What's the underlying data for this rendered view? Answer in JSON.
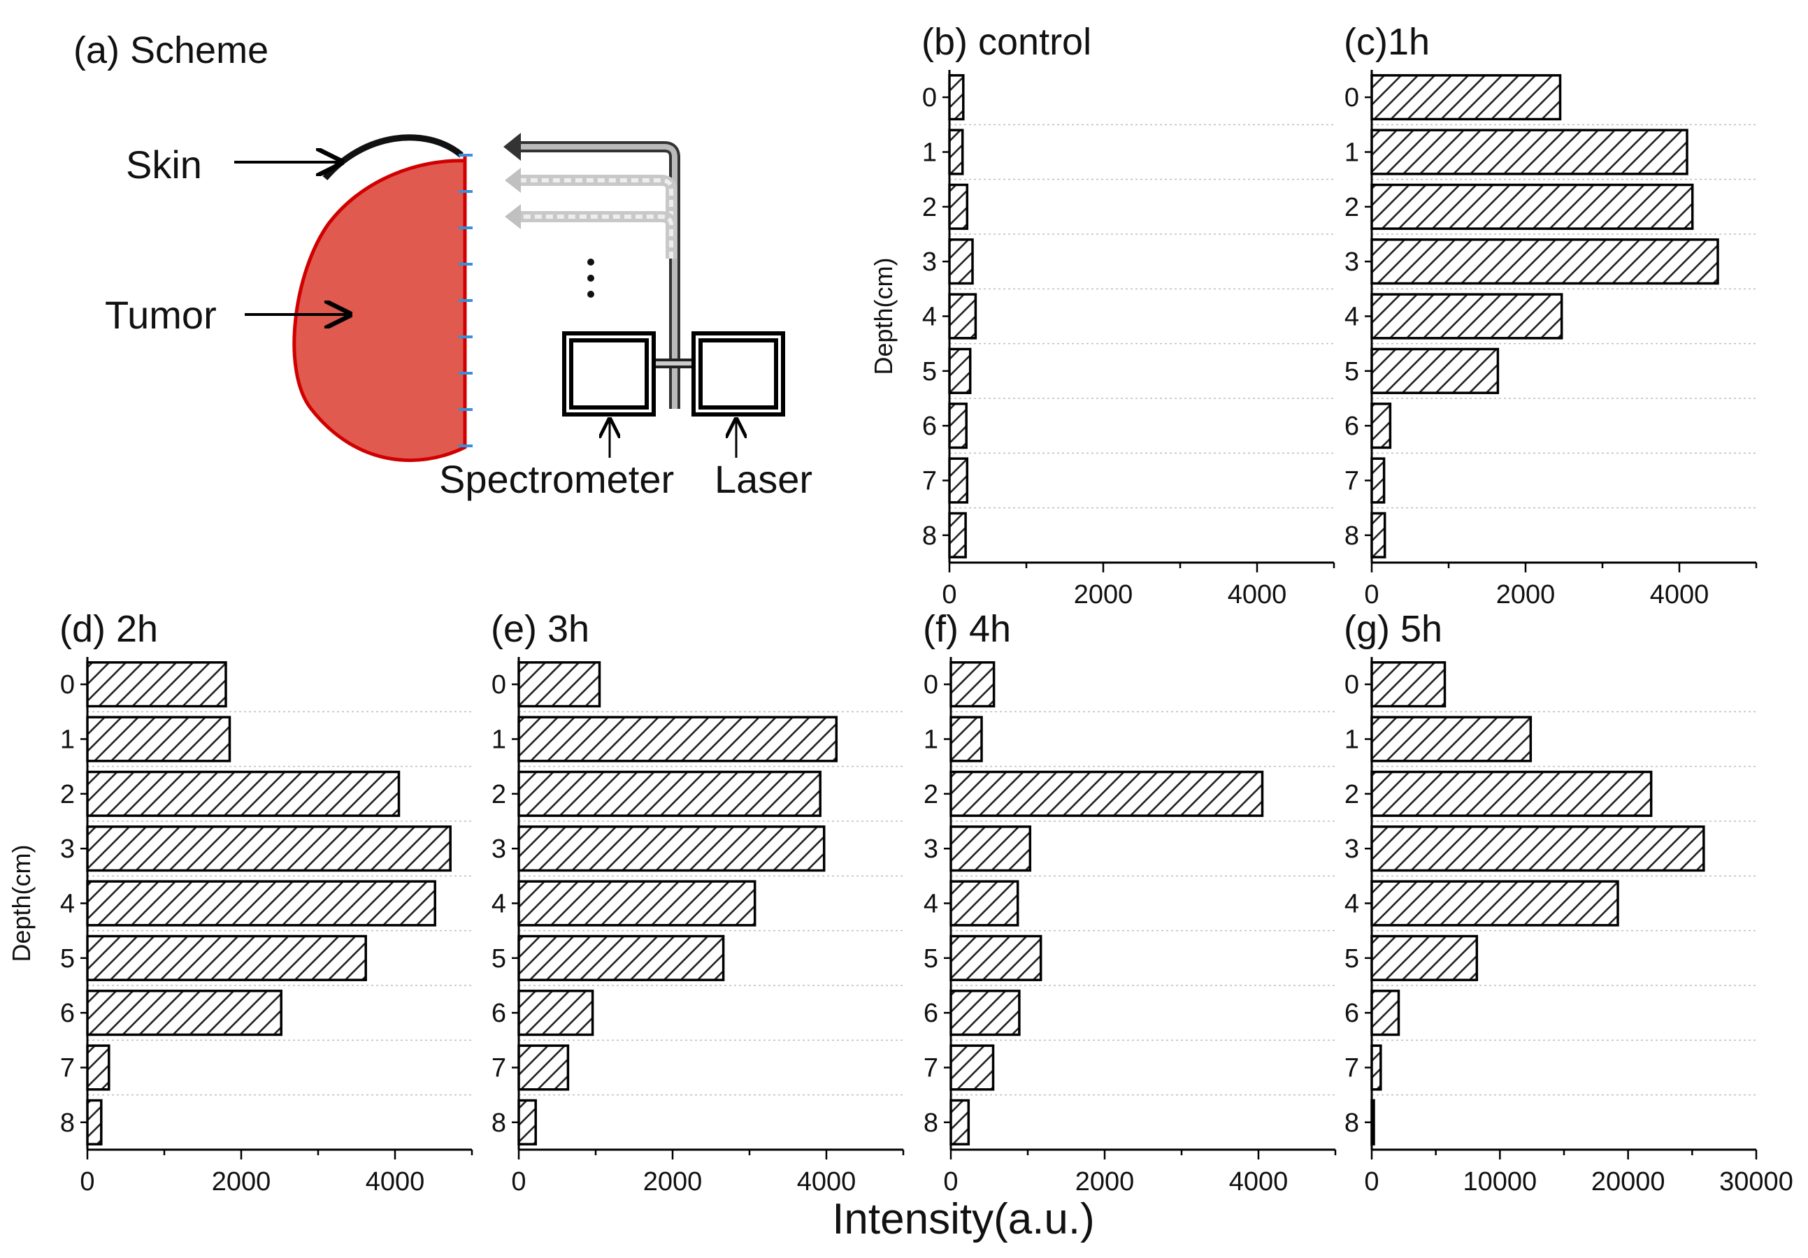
{
  "scheme": {
    "title": "(a) Scheme",
    "skin_label": "Skin",
    "tumor_label": "Tumor",
    "spectrometer_label": "Spectrometer",
    "laser_label": "Laser",
    "tumor_color": "#e05a50",
    "tumor_stroke": "#d10000",
    "probe_color": "#3a8fd6"
  },
  "shared_xlabel": "Intensity(a.u.)",
  "chart_data": [
    {
      "id": "b",
      "type": "bar",
      "orientation": "horizontal",
      "title": "(b) control",
      "ylabel": "Depth(cm)",
      "xlabel": "",
      "categories": [
        "0",
        "1",
        "2",
        "3",
        "4",
        "5",
        "6",
        "7",
        "8"
      ],
      "values": [
        180,
        170,
        230,
        300,
        340,
        270,
        220,
        230,
        210
      ],
      "xlim": [
        0,
        5000
      ],
      "xticks": [
        "0",
        "2000",
        "4000"
      ],
      "xtick_values": [
        0,
        2000,
        4000
      ],
      "pattern": "hatched"
    },
    {
      "id": "c",
      "type": "bar",
      "orientation": "horizontal",
      "title": "(c)1h",
      "ylabel": "",
      "xlabel": "",
      "categories": [
        "0",
        "1",
        "2",
        "3",
        "4",
        "5",
        "6",
        "7",
        "8"
      ],
      "values": [
        2450,
        4100,
        4170,
        4500,
        2470,
        1640,
        240,
        160,
        170
      ],
      "xlim": [
        0,
        5000
      ],
      "xticks": [
        "0",
        "2000",
        "4000"
      ],
      "xtick_values": [
        0,
        2000,
        4000
      ],
      "pattern": "hatched"
    },
    {
      "id": "d",
      "type": "bar",
      "orientation": "horizontal",
      "title": "(d) 2h",
      "ylabel": "Depth(cm)",
      "xlabel": "",
      "categories": [
        "0",
        "1",
        "2",
        "3",
        "4",
        "5",
        "6",
        "7",
        "8"
      ],
      "values": [
        1800,
        1850,
        4050,
        4720,
        4520,
        3620,
        2520,
        280,
        180
      ],
      "xlim": [
        0,
        5000
      ],
      "xticks": [
        "0",
        "2000",
        "4000"
      ],
      "xtick_values": [
        0,
        2000,
        4000
      ],
      "pattern": "hatched"
    },
    {
      "id": "e",
      "type": "bar",
      "orientation": "horizontal",
      "title": "(e) 3h",
      "ylabel": "",
      "xlabel": "",
      "categories": [
        "0",
        "1",
        "2",
        "3",
        "4",
        "5",
        "6",
        "7",
        "8"
      ],
      "values": [
        1050,
        4130,
        3920,
        3970,
        3070,
        2660,
        960,
        640,
        220
      ],
      "xlim": [
        0,
        5000
      ],
      "xticks": [
        "0",
        "2000",
        "4000"
      ],
      "xtick_values": [
        0,
        2000,
        4000
      ],
      "pattern": "hatched"
    },
    {
      "id": "f",
      "type": "bar",
      "orientation": "horizontal",
      "title": "(f) 4h",
      "ylabel": "",
      "xlabel": "",
      "categories": [
        "0",
        "1",
        "2",
        "3",
        "4",
        "5",
        "6",
        "7",
        "8"
      ],
      "values": [
        560,
        400,
        4050,
        1030,
        870,
        1170,
        890,
        550,
        230
      ],
      "xlim": [
        0,
        5000
      ],
      "xticks": [
        "0",
        "2000",
        "4000"
      ],
      "xtick_values": [
        0,
        2000,
        4000
      ],
      "pattern": "hatched"
    },
    {
      "id": "g",
      "type": "bar",
      "orientation": "horizontal",
      "title": "(g) 5h",
      "ylabel": "",
      "xlabel": "",
      "categories": [
        "0",
        "1",
        "2",
        "3",
        "4",
        "5",
        "6",
        "7",
        "8"
      ],
      "values": [
        5700,
        12400,
        21800,
        25900,
        19200,
        8200,
        2100,
        700,
        150
      ],
      "xlim": [
        0,
        30000
      ],
      "xticks": [
        "0",
        "10000",
        "20000",
        "30000"
      ],
      "xtick_values": [
        0,
        10000,
        20000,
        30000
      ],
      "pattern": "hatched"
    }
  ]
}
